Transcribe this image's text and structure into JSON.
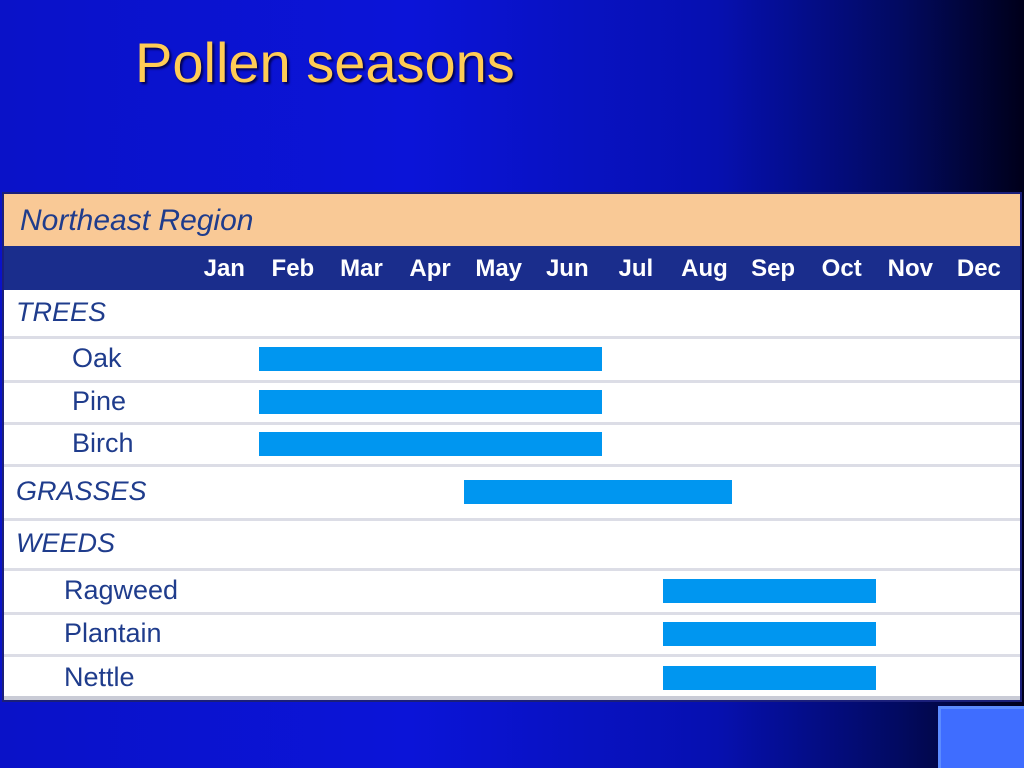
{
  "slide": {
    "title": "Pollen seasons"
  },
  "chart_data": {
    "type": "bar",
    "subtype": "gantt",
    "title": "Northeast Region",
    "months": [
      "Jan",
      "Feb",
      "Mar",
      "Apr",
      "May",
      "Jun",
      "Jul",
      "Aug",
      "Sep",
      "Oct",
      "Nov",
      "Dec"
    ],
    "rows": [
      {
        "label": "TREES",
        "kind": "category"
      },
      {
        "label": "Oak",
        "kind": "item",
        "start": 2.0,
        "end": 7.0
      },
      {
        "label": "Pine",
        "kind": "item",
        "start": 2.0,
        "end": 7.0
      },
      {
        "label": "Birch",
        "kind": "item",
        "start": 2.0,
        "end": 7.0
      },
      {
        "label": "GRASSES",
        "kind": "category",
        "start": 5.0,
        "end": 8.9
      },
      {
        "label": "WEEDS",
        "kind": "category"
      },
      {
        "label": "Ragweed",
        "kind": "item",
        "start": 7.9,
        "end": 11.0
      },
      {
        "label": "Plantain",
        "kind": "item",
        "start": 7.9,
        "end": 11.0
      },
      {
        "label": "Nettle",
        "kind": "item",
        "start": 7.9,
        "end": 11.0
      }
    ],
    "bar_color": "#0096f0",
    "header_band_color": "#f9c996",
    "month_header_color": "#1a2d8c"
  }
}
